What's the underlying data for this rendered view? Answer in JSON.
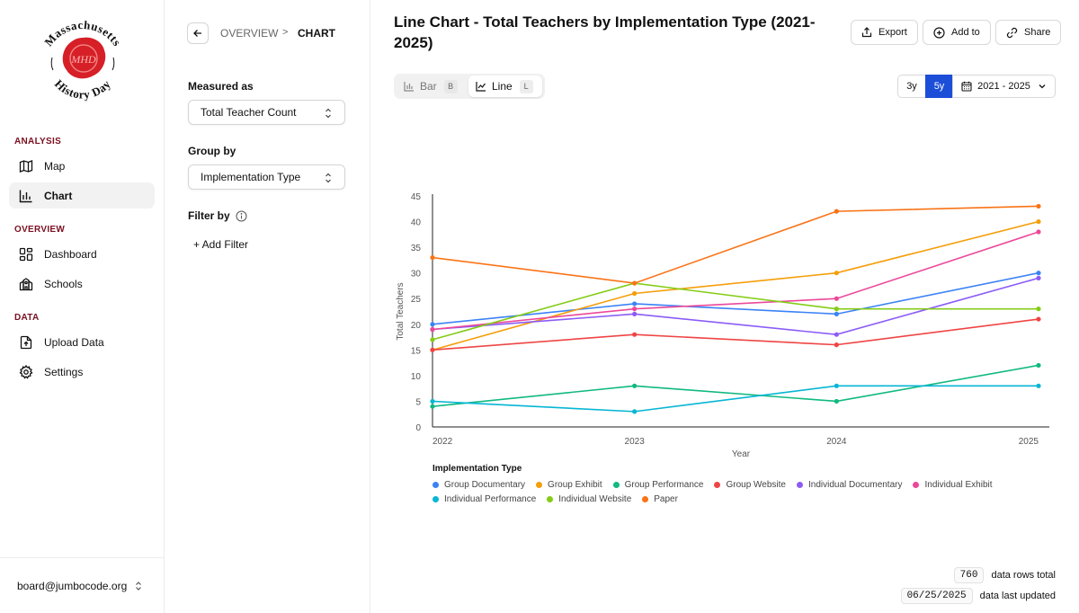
{
  "sidebar": {
    "logo_text_top": "Massachusetts",
    "logo_text_bottom": "History Day",
    "logo_seal": "MHD",
    "sections": {
      "analysis": "ANALYSIS",
      "overview": "OVERVIEW",
      "data": "DATA"
    },
    "items": {
      "map": "Map",
      "chart": "Chart",
      "dashboard": "Dashboard",
      "schools": "Schools",
      "upload": "Upload Data",
      "settings": "Settings"
    },
    "user_email": "board@jumbocode.org"
  },
  "panel": {
    "breadcrumb": {
      "parent": "OVERVIEW",
      "separator": ">",
      "current": "CHART"
    },
    "measured_as_label": "Measured as",
    "measured_as_value": "Total Teacher Count",
    "group_by_label": "Group by",
    "group_by_value": "Implementation Type",
    "filter_by_label": "Filter by",
    "add_filter_label": "+ Add Filter"
  },
  "main": {
    "title": "Line Chart - Total Teachers by Implementation Type (2021-2025)",
    "buttons": {
      "export": "Export",
      "add_to": "Add to",
      "share": "Share"
    },
    "chart_type_toggle": {
      "bar": {
        "label": "Bar",
        "key": "B"
      },
      "line": {
        "label": "Line",
        "key": "L"
      }
    },
    "range": {
      "three_y": "3y",
      "five_y": "5y",
      "date_range": "2021 - 2025"
    },
    "legend_title": "Implementation Type",
    "meta": {
      "rows_value": "760",
      "rows_label": "data rows total",
      "updated_value": "06/25/2025",
      "updated_label": "data last updated"
    }
  },
  "chart_data": {
    "type": "line",
    "title": "Line Chart - Total Teachers by Implementation Type (2021-2025)",
    "xlabel": "Year",
    "ylabel": "Total Teachers",
    "x": [
      "2022",
      "2023",
      "2024",
      "2025"
    ],
    "ylim": [
      0,
      45
    ],
    "yticks": [
      0,
      5,
      10,
      15,
      20,
      25,
      30,
      35,
      40,
      45
    ],
    "grid": false,
    "legend_position": "bottom",
    "series": [
      {
        "name": "Group Documentary",
        "color": "#3b82f6",
        "values": [
          20,
          24,
          22,
          30
        ]
      },
      {
        "name": "Group Exhibit",
        "color": "#f59e0b",
        "values": [
          15,
          26,
          30,
          40
        ]
      },
      {
        "name": "Group Performance",
        "color": "#10b981",
        "values": [
          4,
          8,
          5,
          12
        ]
      },
      {
        "name": "Group Website",
        "color": "#ef4444",
        "values": [
          15,
          18,
          16,
          21
        ]
      },
      {
        "name": "Individual Documentary",
        "color": "#8b5cf6",
        "values": [
          19,
          22,
          18,
          29
        ]
      },
      {
        "name": "Individual Exhibit",
        "color": "#ec4899",
        "values": [
          19,
          23,
          25,
          38
        ]
      },
      {
        "name": "Individual Performance",
        "color": "#06b6d4",
        "values": [
          5,
          3,
          8,
          8
        ]
      },
      {
        "name": "Individual Website",
        "color": "#84cc16",
        "values": [
          17,
          28,
          23,
          23
        ]
      },
      {
        "name": "Paper",
        "color": "#f97316",
        "values": [
          33,
          28,
          42,
          43
        ]
      }
    ]
  }
}
